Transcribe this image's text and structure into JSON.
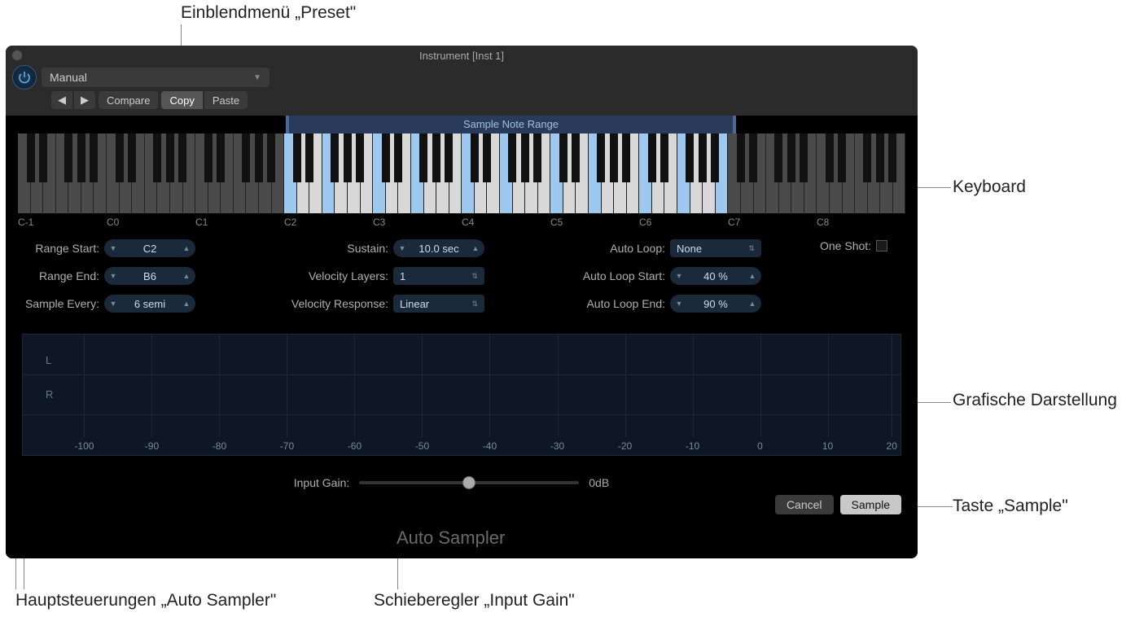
{
  "callouts": {
    "preset": "Einblendmenü „Preset\"",
    "keyboard": "Keyboard",
    "graphics": "Grafische Darstellung",
    "sample_btn": "Taste „Sample\"",
    "main_ctrls": "Hauptsteuerungen „Auto Sampler\"",
    "input_gain": "Schieberegler „Input Gain\""
  },
  "window": {
    "title": "Instrument [Inst 1]",
    "preset_value": "Manual",
    "toolbar": {
      "prev": "◀",
      "next": "▶",
      "compare": "Compare",
      "copy": "Copy",
      "paste": "Paste"
    }
  },
  "range_header": "Sample Note Range",
  "keyboard": {
    "num_white_keys": 70,
    "active_start_white_idx": 21,
    "active_end_white_idx": 55,
    "highlighted_white_idx": [
      21,
      24,
      28,
      31,
      35,
      38,
      42,
      45,
      49,
      52,
      55
    ],
    "oct_labels": [
      "C-1",
      "C0",
      "C1",
      "C2",
      "C3",
      "C4",
      "C5",
      "C6",
      "C7",
      "C8"
    ],
    "oct_positions_pct": [
      0,
      10,
      20,
      30,
      40,
      50,
      60,
      70,
      80,
      90
    ]
  },
  "params": {
    "range_start": {
      "label": "Range Start:",
      "value": "C2"
    },
    "range_end": {
      "label": "Range End:",
      "value": "B6"
    },
    "sample_every": {
      "label": "Sample Every:",
      "value": "6 semi"
    },
    "sustain": {
      "label": "Sustain:",
      "value": "10.0 sec"
    },
    "vel_layers": {
      "label": "Velocity Layers:",
      "value": "1"
    },
    "vel_resp": {
      "label": "Velocity Response:",
      "value": "Linear"
    },
    "auto_loop": {
      "label": "Auto Loop:",
      "value": "None"
    },
    "auto_loop_start": {
      "label": "Auto Loop Start:",
      "value": "40 %"
    },
    "auto_loop_end": {
      "label": "Auto Loop End:",
      "value": "90 %"
    },
    "one_shot": {
      "label": "One Shot:",
      "checked": false
    }
  },
  "waveform": {
    "ch_left": "L",
    "ch_right": "R",
    "xlabels": [
      "-100",
      "-90",
      "-80",
      "-70",
      "-60",
      "-50",
      "-40",
      "-30",
      "-20",
      "-10",
      "0",
      "10",
      "20"
    ],
    "xpositions_pct": [
      7,
      14.7,
      22.4,
      30.1,
      37.8,
      45.5,
      53.2,
      60.9,
      68.6,
      76.3,
      84,
      91.7,
      99
    ],
    "bg": "#0e1824",
    "grid": "#1a2838"
  },
  "input_gain": {
    "label": "Input Gain:",
    "value": "0dB",
    "thumb_pct": 50
  },
  "buttons": {
    "cancel": "Cancel",
    "sample": "Sample"
  },
  "footer": "Auto Sampler"
}
